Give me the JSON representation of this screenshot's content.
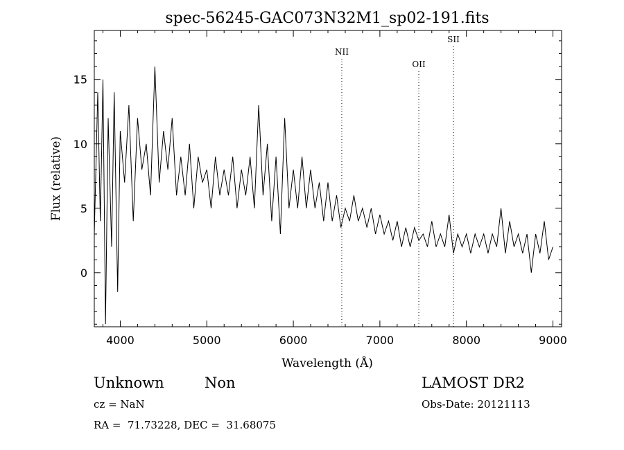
{
  "chart_data": {
    "type": "line",
    "title": "spec-56245-GAC073N32M1_sp02-191.fits",
    "xlabel": "Wavelength (Å)",
    "ylabel": "Flux (relative)",
    "xlim": [
      3700,
      9100
    ],
    "ylim": [
      -4.2,
      18.8
    ],
    "xticks": [
      4000,
      5000,
      6000,
      7000,
      8000,
      9000
    ],
    "yticks": [
      0,
      5,
      10,
      15
    ],
    "grid": false,
    "series": [
      {
        "x": [
          3700,
          3740,
          3770,
          3800,
          3830,
          3860,
          3900,
          3930,
          3970,
          4000,
          4050,
          4100,
          4150,
          4200,
          4250,
          4300,
          4350,
          4400,
          4450,
          4500,
          4550,
          4600,
          4650,
          4700,
          4750,
          4800,
          4850,
          4900,
          4950,
          5000,
          5050,
          5100,
          5150,
          5200,
          5250,
          5300,
          5350,
          5400,
          5450,
          5500,
          5550,
          5600,
          5650,
          5700,
          5750,
          5800,
          5850,
          5900,
          5950,
          6000,
          6050,
          6100,
          6150,
          6200,
          6250,
          6300,
          6350,
          6400,
          6450,
          6500,
          6550,
          6600,
          6650,
          6700,
          6750,
          6800,
          6850,
          6900,
          6950,
          7000,
          7050,
          7100,
          7150,
          7200,
          7250,
          7300,
          7350,
          7400,
          7450,
          7500,
          7550,
          7600,
          7650,
          7700,
          7750,
          7800,
          7850,
          7900,
          7950,
          8000,
          8050,
          8100,
          8150,
          8200,
          8250,
          8300,
          8350,
          8400,
          8450,
          8500,
          8550,
          8600,
          8650,
          8700,
          8750,
          8800,
          8850,
          8900,
          8950,
          9000
        ],
        "values": [
          3,
          14,
          4,
          15,
          -4,
          12,
          2,
          14,
          -1.5,
          11,
          7,
          13,
          4,
          12,
          8,
          10,
          6,
          16,
          7,
          11,
          8,
          12,
          6,
          9,
          6,
          10,
          5,
          9,
          7,
          8,
          5,
          9,
          6,
          8,
          6,
          9,
          5,
          8,
          6,
          9,
          5,
          13,
          6,
          10,
          4,
          9,
          3,
          12,
          5,
          8,
          5,
          9,
          5,
          8,
          5,
          7,
          4,
          7,
          4,
          6,
          3.5,
          5,
          4,
          6,
          4,
          5,
          3.5,
          5,
          3,
          4.5,
          3,
          4,
          2.5,
          4,
          2,
          3.5,
          2,
          3.5,
          2.5,
          3,
          2,
          4,
          2,
          3,
          2,
          4.5,
          1.5,
          3,
          2,
          3,
          1.5,
          3,
          2,
          3,
          1.5,
          3,
          2,
          5,
          1.5,
          4,
          2,
          3,
          1.5,
          3,
          0,
          3,
          1.5,
          4,
          1,
          2
        ]
      }
    ],
    "lines": [
      {
        "label": "NII",
        "x": 6560
      },
      {
        "label": "OII",
        "x": 7450
      },
      {
        "label": "SII",
        "x": 7850
      }
    ]
  },
  "footer": {
    "class_label": "Unknown",
    "subclass_label": "Non",
    "survey": "LAMOST DR2",
    "cz": "cz = NaN",
    "obs_date": "Obs-Date: 20121113",
    "coords": "RA =  71.73228, DEC =  31.68075"
  }
}
